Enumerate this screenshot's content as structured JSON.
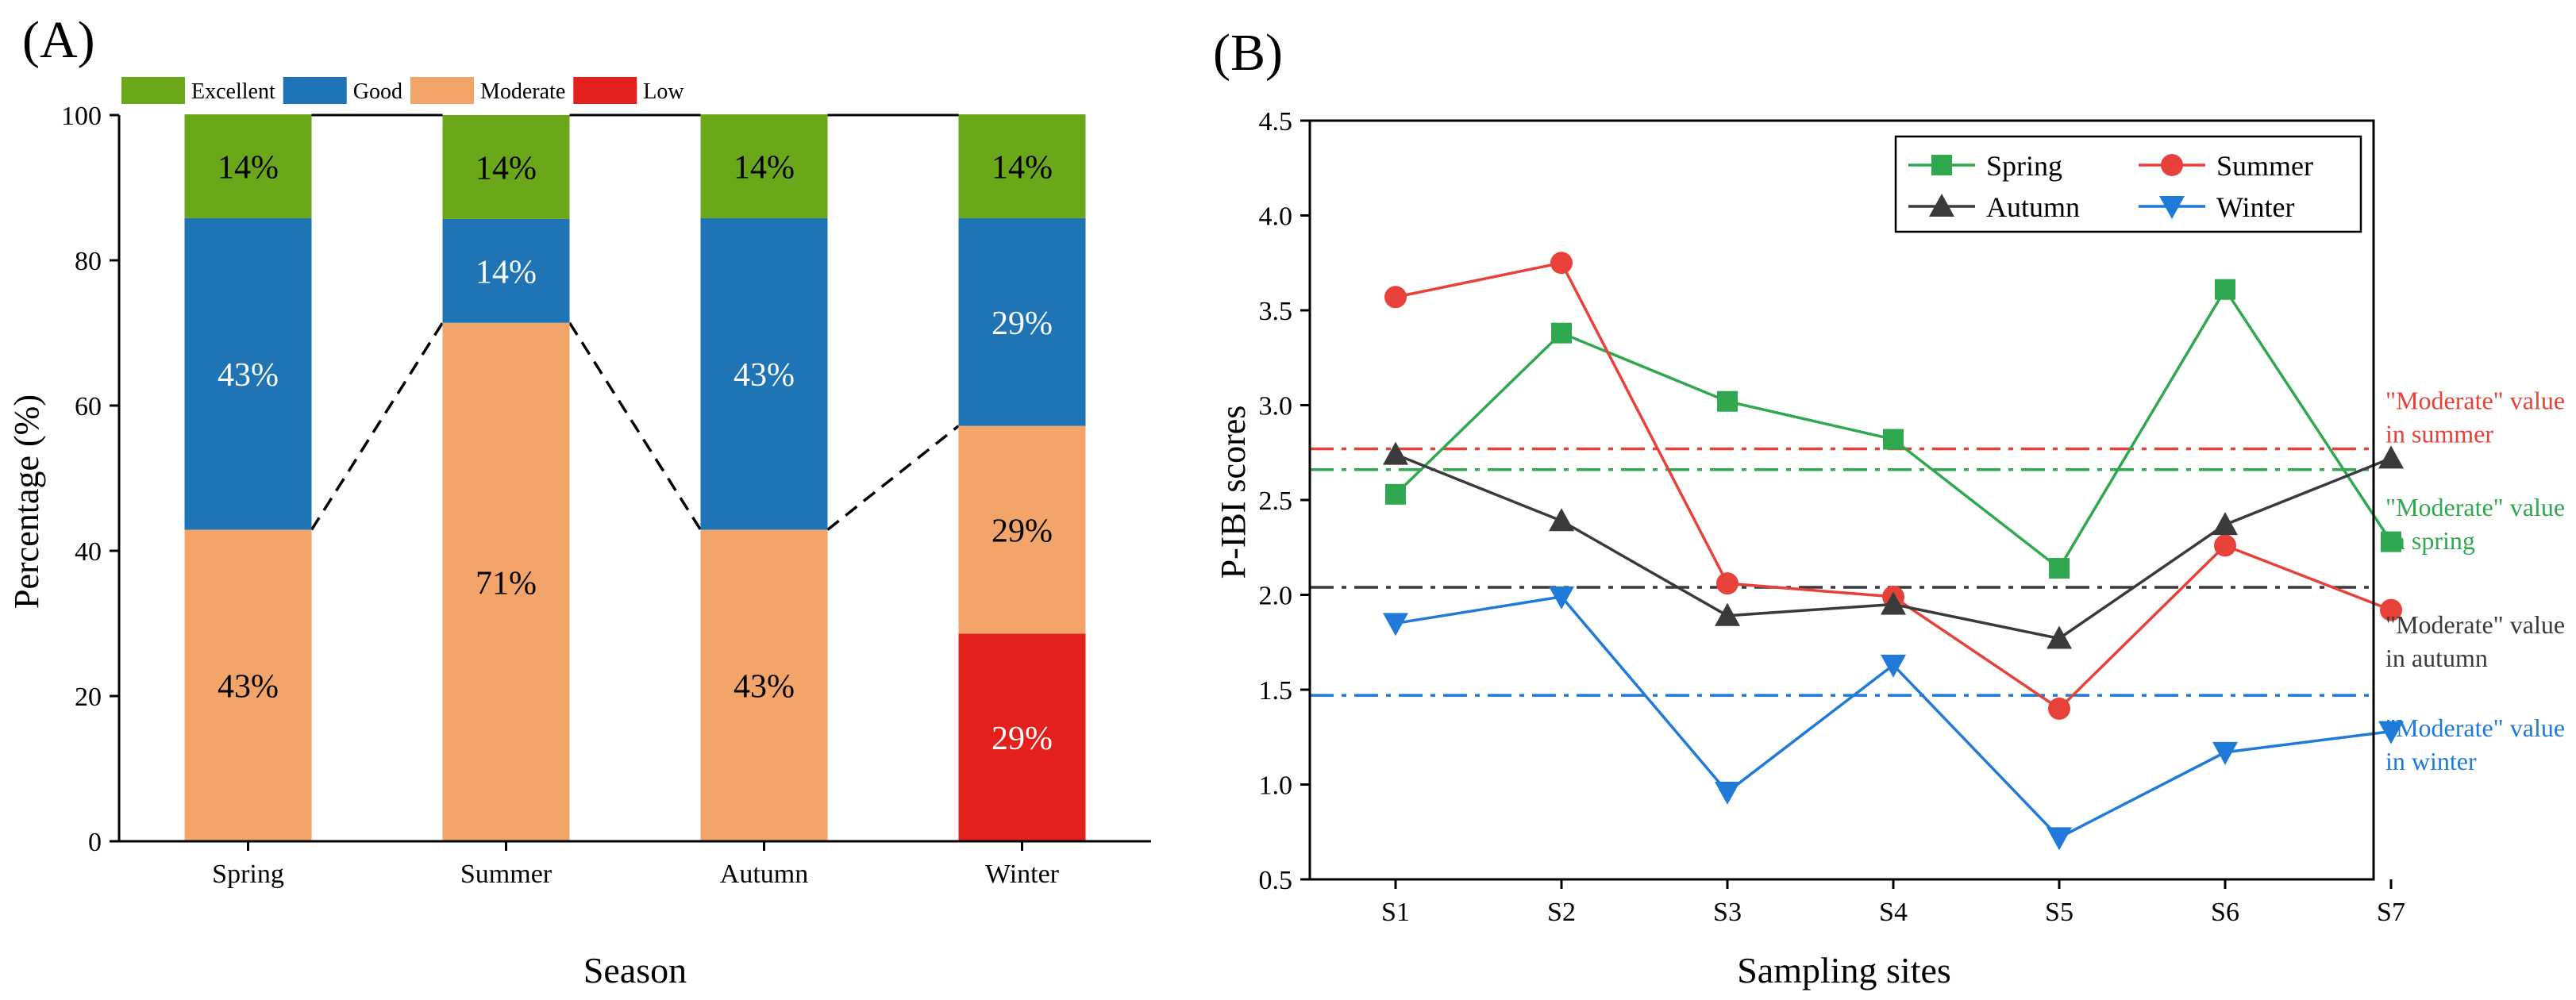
{
  "chart_data": [
    {
      "type": "bar",
      "stacked": true,
      "panel_label": "(A)",
      "xlabel": "Season",
      "ylabel": "Percentage (%)",
      "ylim": [
        0,
        100
      ],
      "yticks": [
        0,
        20,
        40,
        60,
        80,
        100
      ],
      "grid": false,
      "legend_position": "top",
      "categories": [
        "Spring",
        "Summer",
        "Autumn",
        "Winter"
      ],
      "series": [
        {
          "name": "Low",
          "color": "#e3201c",
          "values": [
            0,
            0,
            0,
            28.6
          ],
          "labels": [
            "",
            "",
            "",
            "29%"
          ],
          "label_color": "#ffffff"
        },
        {
          "name": "Moderate",
          "color": "#f3a468",
          "values": [
            42.9,
            71.4,
            42.9,
            28.6
          ],
          "labels": [
            "43%",
            "71%",
            "43%",
            "29%"
          ],
          "label_color": "#000000"
        },
        {
          "name": "Good",
          "color": "#1f74b6",
          "values": [
            42.9,
            14.3,
            42.9,
            28.6
          ],
          "labels": [
            "43%",
            "14%",
            "43%",
            "29%"
          ],
          "label_color": "#ffffff"
        },
        {
          "name": "Excellent",
          "color": "#6aa719",
          "values": [
            14.3,
            14.3,
            14.3,
            14.3
          ],
          "labels": [
            "14%",
            "14%",
            "14%",
            "14%"
          ],
          "label_color": "#000000"
        }
      ],
      "legend_order": [
        "Excellent",
        "Good",
        "Moderate",
        "Low"
      ]
    },
    {
      "type": "line",
      "panel_label": "(B)",
      "xlabel": "Sampling sites",
      "ylabel": "P-IBI scores",
      "ylim": [
        0.5,
        4.5
      ],
      "yticks": [
        "0.5",
        "1.0",
        "1.5",
        "2.0",
        "2.5",
        "3.0",
        "3.5",
        "4.0",
        "4.5"
      ],
      "grid": false,
      "legend_position": "top-right",
      "x": [
        "S1",
        "S2",
        "S3",
        "S4",
        "S5",
        "S6",
        "S7"
      ],
      "series": [
        {
          "name": "Spring",
          "color": "#2fa84f",
          "marker": "square",
          "values": [
            2.53,
            3.38,
            3.02,
            2.82,
            2.14,
            3.61,
            2.28
          ]
        },
        {
          "name": "Summer",
          "color": "#e8413a",
          "marker": "circle",
          "values": [
            3.57,
            3.75,
            2.06,
            1.99,
            1.4,
            2.26,
            1.92
          ]
        },
        {
          "name": "Autumn",
          "color": "#3a3a3a",
          "marker": "triangle-up",
          "values": [
            2.74,
            2.39,
            1.89,
            1.95,
            1.77,
            2.37,
            2.72
          ]
        },
        {
          "name": "Winter",
          "color": "#1f7ad9",
          "marker": "triangle-down",
          "values": [
            1.85,
            1.99,
            0.96,
            1.63,
            0.72,
            1.17,
            1.28
          ]
        }
      ],
      "reference_lines": [
        {
          "season": "summer",
          "value": 2.77,
          "color": "#e8413a",
          "line1": "\"Moderate\" value",
          "line2": "in summer"
        },
        {
          "season": "spring",
          "value": 2.66,
          "color": "#2fa84f",
          "line1": "\"Moderate\" value",
          "line2": "in spring"
        },
        {
          "season": "autumn",
          "value": 2.04,
          "color": "#3a3a3a",
          "line1": "\"Moderate\" value",
          "line2": "in autumn"
        },
        {
          "season": "winter",
          "value": 1.47,
          "color": "#1f7ad9",
          "line1": "\"Moderate\" value",
          "line2": "in winter"
        }
      ]
    }
  ]
}
